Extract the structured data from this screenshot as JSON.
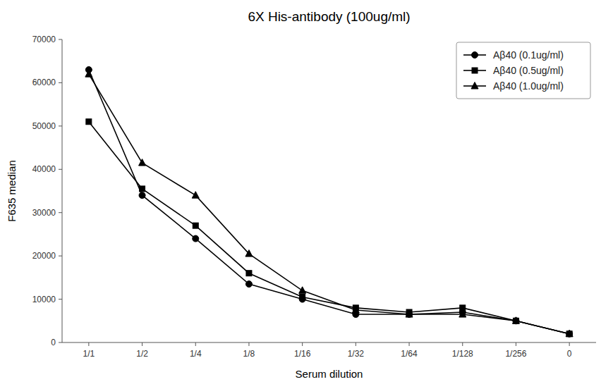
{
  "chart_data": {
    "type": "line",
    "title": "6X His-antibody (100ug/ml)",
    "x_label": "Serum dilution",
    "y_label": "F635 median",
    "categories": [
      "1/1",
      "1/2",
      "1/4",
      "1/8",
      "1/16",
      "1/32",
      "1/64",
      "1/128",
      "1/256",
      "0"
    ],
    "series": [
      {
        "name": "Aβ40 (0.1ug/ml)",
        "marker": "circle",
        "values": [
          63000,
          34000,
          24000,
          13500,
          10000,
          6500,
          6500,
          7000,
          5000,
          2000
        ]
      },
      {
        "name": "Aβ40 (0.5ug/ml)",
        "marker": "square",
        "values": [
          51000,
          35500,
          27000,
          16000,
          10500,
          8000,
          7000,
          8000,
          5000,
          2000
        ]
      },
      {
        "name": "Aβ40 (1.0ug/ml)",
        "marker": "triangle",
        "values": [
          62000,
          41500,
          34000,
          20500,
          12000,
          7500,
          6500,
          6500,
          5000,
          2000
        ]
      }
    ],
    "ylim": [
      0,
      70000
    ],
    "yticks": [
      0,
      10000,
      20000,
      30000,
      40000,
      50000,
      60000,
      70000
    ],
    "color": "#000000",
    "grid": false,
    "legend": "upper right"
  }
}
